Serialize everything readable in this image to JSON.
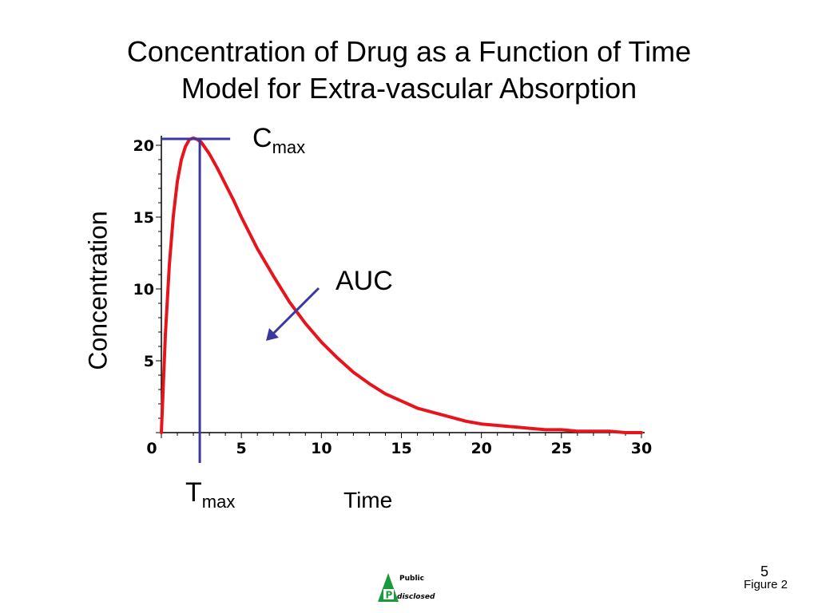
{
  "title": {
    "line1": "Concentration of Drug as a Function of Time",
    "line2": "Model for Extra-vascular Absorption"
  },
  "annotations": {
    "cmax_main": "C",
    "cmax_sub": "max",
    "tmax_main": "T",
    "tmax_sub": "max",
    "auc": "AUC"
  },
  "footer": {
    "slide_number": "5",
    "figure_label": "Figure 2",
    "logo_top": "Public",
    "logo_letter": "P",
    "logo_bottom": "disclosed"
  },
  "colors": {
    "curve": "#e8141c",
    "markers": "#3a37a0",
    "logo_green": "#1a9a3c"
  },
  "chart_data": {
    "type": "line",
    "title": "",
    "xlabel": "Time",
    "ylabel": "Concentration",
    "xlim": [
      0,
      30
    ],
    "ylim": [
      0,
      20
    ],
    "xticks": [
      0,
      5,
      10,
      15,
      20,
      25,
      30
    ],
    "yticks": [
      0,
      5,
      10,
      15,
      20
    ],
    "xtick_labels": [
      "0",
      "5",
      "10",
      "15",
      "20",
      "25",
      "30"
    ],
    "ytick_labels": [
      "0",
      "5",
      "10",
      "15",
      "20"
    ],
    "grid": false,
    "series": [
      {
        "x": [
          0,
          0.25,
          0.5,
          0.75,
          1,
          1.25,
          1.5,
          1.75,
          2,
          2.25,
          2.5,
          3,
          3.5,
          4,
          4.5,
          5,
          6,
          7,
          8,
          9,
          10,
          11,
          12,
          13,
          14,
          15,
          16,
          17,
          18,
          19,
          20,
          21,
          22,
          23,
          24,
          25,
          26,
          27,
          28,
          29,
          30
        ],
        "y": [
          0,
          6.8,
          11.7,
          15.1,
          17.5,
          19.0,
          19.9,
          20.4,
          20.5,
          20.4,
          20.2,
          19.4,
          18.4,
          17.3,
          16.2,
          15.0,
          12.8,
          10.9,
          9.1,
          7.6,
          6.3,
          5.2,
          4.2,
          3.4,
          2.7,
          2.2,
          1.7,
          1.4,
          1.1,
          0.8,
          0.6,
          0.5,
          0.4,
          0.3,
          0.2,
          0.2,
          0.1,
          0.1,
          0.1,
          0.0,
          0.0
        ]
      }
    ],
    "cmax": 20.5,
    "tmax": 2.4
  }
}
